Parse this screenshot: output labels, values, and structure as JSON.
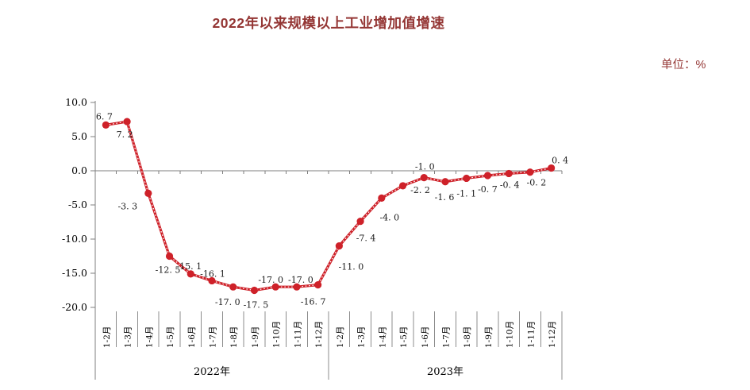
{
  "chart_data": {
    "type": "line",
    "title": "2022年以来规模以上工业增加值增速",
    "unit_label": "单位：%",
    "ylabel": "",
    "xlabel": "",
    "ylim": [
      -20,
      10
    ],
    "y_tick_step": 5,
    "y_ticks": [
      "10.0",
      "5.0",
      "0.0",
      "-5.0",
      "-10.0",
      "-15.0",
      "-20.0"
    ],
    "grid": "zero-line-only",
    "legend": "none",
    "groups": [
      {
        "label": "2022年",
        "categories": [
          "1-2月",
          "1-3月",
          "1-4月",
          "1-5月",
          "1-6月",
          "1-7月",
          "1-8月",
          "1-9月",
          "1-10月",
          "1-11月",
          "1-12月"
        ]
      },
      {
        "label": "2023年",
        "categories": [
          "1-2月",
          "1-3月",
          "1-4月",
          "1-5月",
          "1-6月",
          "1-7月",
          "1-8月",
          "1-9月",
          "1-10月",
          "1-11月",
          "1-12月"
        ]
      }
    ],
    "values": [
      6.7,
      7.2,
      -3.3,
      -12.5,
      -15.1,
      -16.1,
      -17.0,
      -17.5,
      -17.0,
      -17.0,
      -16.7,
      -11.0,
      -7.4,
      -4.0,
      -2.2,
      -1.0,
      -1.6,
      -1.1,
      -0.7,
      -0.4,
      -0.2,
      0.4
    ],
    "label_side": [
      "above",
      "below",
      "below",
      "below",
      "above",
      "above",
      "below",
      "below",
      "above",
      "above",
      "below",
      "below",
      "below",
      "below",
      "below",
      "above",
      "below",
      "below",
      "below",
      "below",
      "below",
      "above"
    ],
    "colors": {
      "line": "#ce2129",
      "marker": "#ce2129",
      "title_text": "#943634",
      "unit_text": "#943634",
      "axis": "#7f7f7f",
      "divider": "#8c8c8c",
      "data_label_text": "#1a1a1a"
    }
  }
}
